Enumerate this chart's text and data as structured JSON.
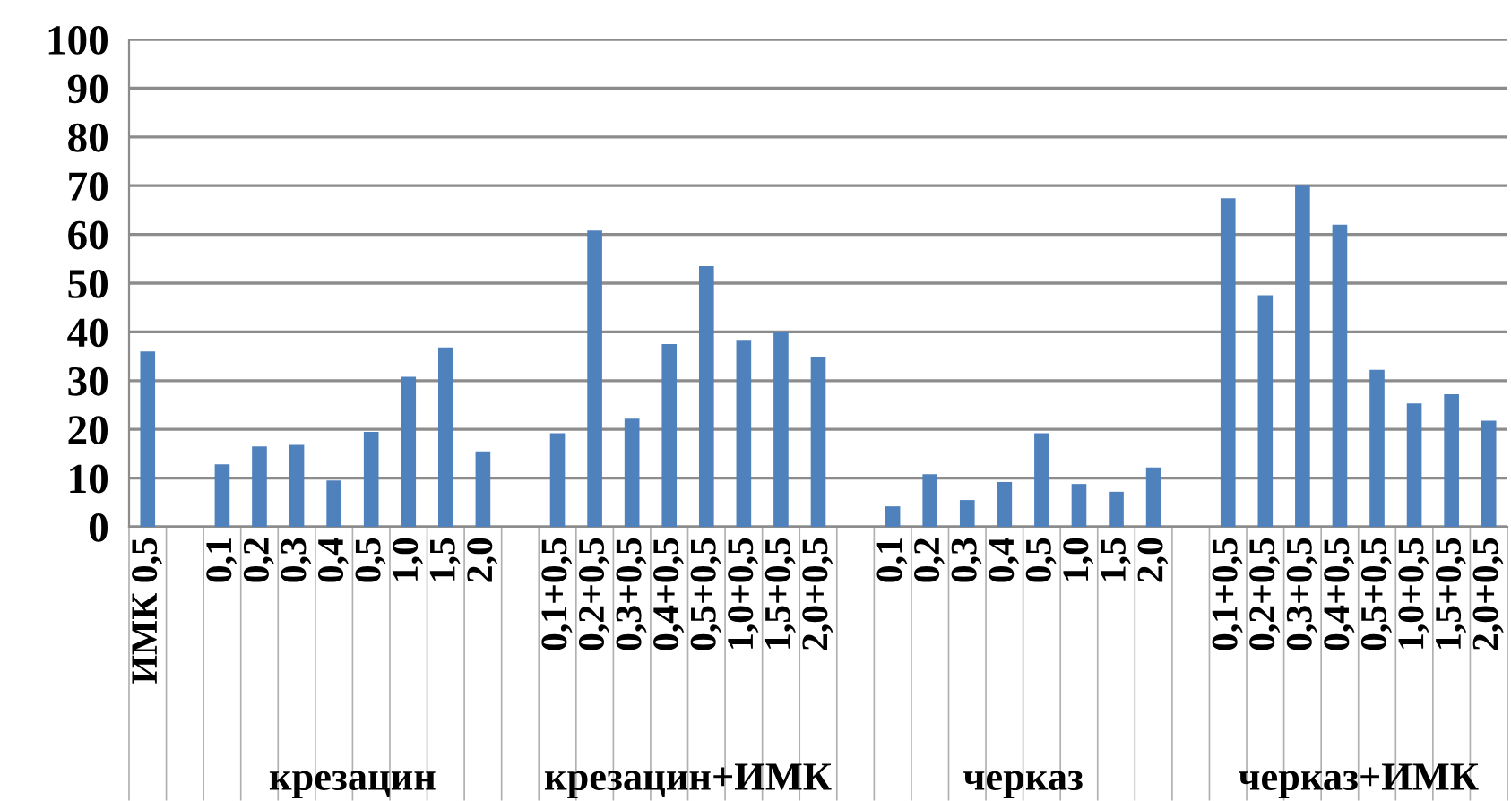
{
  "chart_data": {
    "type": "bar",
    "categories": [
      "ИМК 0,5",
      null,
      "0,1",
      "0,2",
      "0,3",
      "0,4",
      "0,5",
      "1,0",
      "1,5",
      "2,0",
      null,
      "0,1+0,5",
      "0,2+0,5",
      "0,3+0,5",
      "0,4+0,5",
      "0,5+0,5",
      "1,0+0,5",
      "1,5+0,5",
      "2,0+0,5",
      null,
      "0,1",
      "0,2",
      "0,3",
      "0,4",
      "0,5",
      "1,0",
      "1,5",
      "2,0",
      null,
      "0,1+0,5",
      "0,2+0,5",
      "0,3+0,5",
      "0,4+0,5",
      "0,5+0,5",
      "1,0+0,5",
      "1,5+0,5",
      "2,0+0,5"
    ],
    "values": [
      36,
      null,
      12.8,
      16.5,
      16.8,
      9.5,
      19.5,
      30.8,
      36.8,
      15.5,
      null,
      19.2,
      60.8,
      22.2,
      37.5,
      53.5,
      38.2,
      40,
      34.8,
      null,
      4.2,
      10.8,
      5.5,
      9.2,
      19.2,
      8.8,
      7.2,
      12.2,
      null,
      67.4,
      47.5,
      70,
      62,
      32.2,
      25.3,
      27.2,
      21.8
    ],
    "color": "#4f81bd",
    "ylim": [
      0,
      100
    ],
    "yticks": [
      0,
      10,
      20,
      30,
      40,
      50,
      60,
      70,
      80,
      90,
      100
    ],
    "grid": "y",
    "annotations": [
      "крезацин",
      "крезацин+ИМК",
      "черказ",
      "черказ+ИМК"
    ]
  }
}
